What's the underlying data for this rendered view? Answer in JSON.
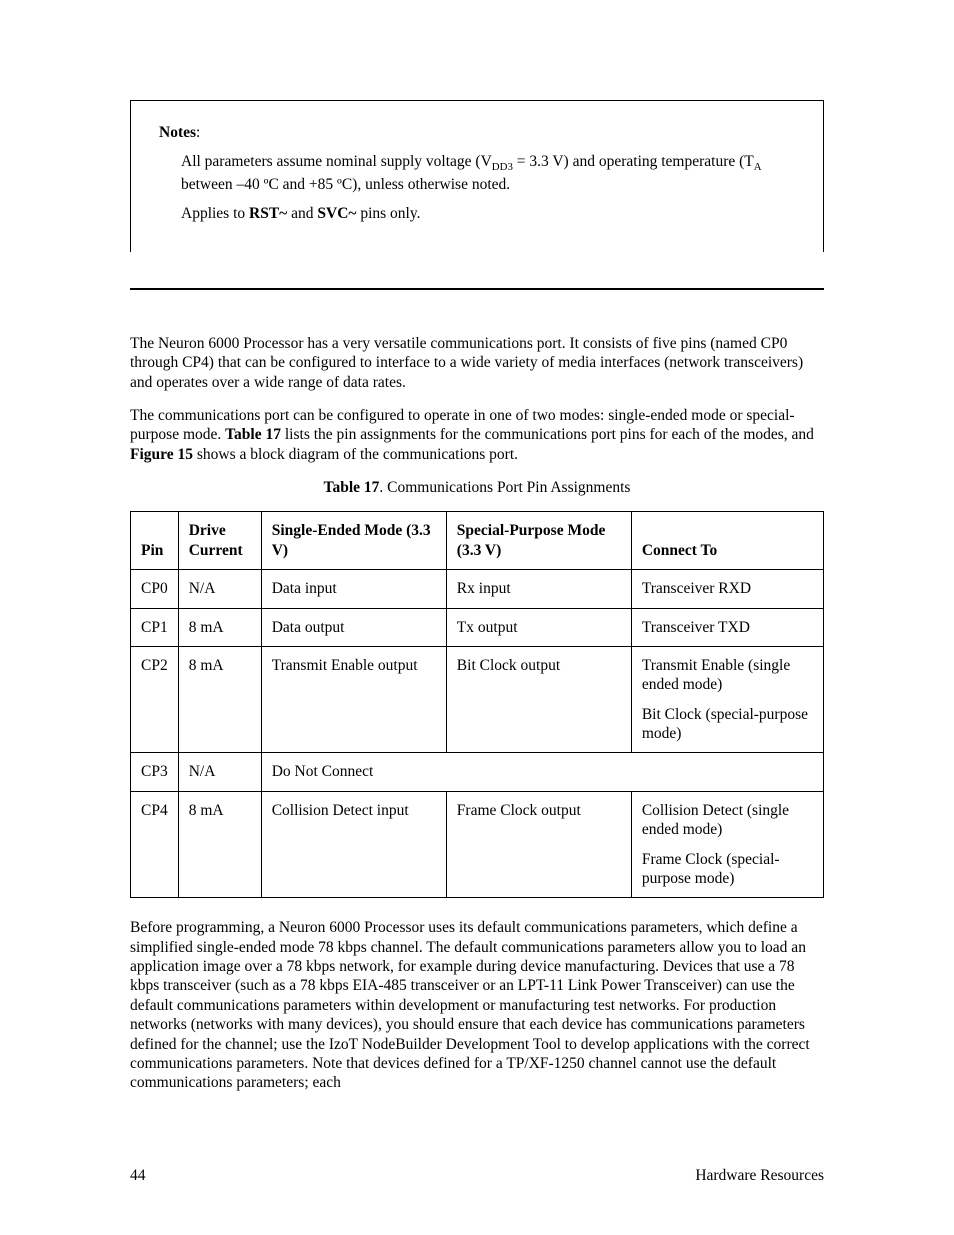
{
  "notes": {
    "title": "Notes",
    "para1_pre": "All parameters assume nominal supply voltage (V",
    "para1_sub": "DD3",
    "para1_mid": " = 3.3 V) and operating temperature (T",
    "para1_sub2": "A",
    "para1_post": " between –40 ºC and +85 ºC), unless otherwise noted.",
    "para2_pre": "Applies to ",
    "para2_b1": "RST~",
    "para2_mid": " and ",
    "para2_b2": "SVC~",
    "para2_post": " pins only."
  },
  "para_intro": "The Neuron 6000 Processor has a very versatile communications port.  It consists of five pins (named CP0 through CP4) that can be configured to interface to a wide variety of media interfaces (network transceivers) and operates over a wide range of data rates.",
  "para_modes_pre": "The communications port can be configured to operate in one of two modes:  single-ended mode or special-purpose mode.  ",
  "para_modes_b1": "Table 17",
  "para_modes_mid": " lists the pin assignments for the communications port pins for each of the modes, and ",
  "para_modes_b2": "Figure 15",
  "para_modes_post": " shows a block diagram of the communications port.",
  "table": {
    "caption_b": "Table 17",
    "caption_rest": ". Communications Port Pin Assignments",
    "headers": {
      "pin": "Pin",
      "drive": "Drive Current",
      "se": "Single-Ended Mode (3.3 V)",
      "sp": "Special-Purpose Mode\n(3.3 V)",
      "conn": "Connect To"
    },
    "rows": {
      "r0": {
        "pin": "CP0",
        "drive": "N/A",
        "se": "Data input",
        "sp": "Rx input",
        "conn": "Transceiver RXD"
      },
      "r1": {
        "pin": "CP1",
        "drive": "8 mA",
        "se": "Data output",
        "sp": "Tx output",
        "conn": "Transceiver TXD"
      },
      "r2": {
        "pin": "CP2",
        "drive": "8 mA",
        "se": "Transmit Enable output",
        "sp": "Bit Clock output",
        "conn1": "Transmit Enable (single ended mode)",
        "conn2": "Bit Clock (special-purpose mode)"
      },
      "r3": {
        "pin": "CP3",
        "drive": "N/A",
        "merged": "Do Not Connect"
      },
      "r4": {
        "pin": "CP4",
        "drive": "8 mA",
        "se": "Collision Detect input",
        "sp": "Frame Clock output",
        "conn1": "Collision Detect (single ended mode)",
        "conn2": "Frame Clock (special-purpose mode)"
      }
    }
  },
  "para_after": "Before programming, a Neuron 6000 Processor uses its default communications parameters, which define a simplified single-ended mode 78 kbps channel.  The default communications parameters allow you to load an application image over a 78 kbps network, for example during device manufacturing.  Devices that use a 78 kbps transceiver (such as a 78 kbps EIA-485 transceiver or an LPT-11 Link Power Transceiver) can use the default communications parameters within development or manufacturing test networks.  For production networks (networks with many devices), you should ensure that each device has communications parameters defined for the channel; use the IzoT NodeBuilder Development Tool to develop applications with the correct communications parameters.  Note that devices defined for a TP/XF-1250 channel cannot use the default communications parameters; each",
  "footer": {
    "page": "44",
    "section": "Hardware Resources"
  }
}
